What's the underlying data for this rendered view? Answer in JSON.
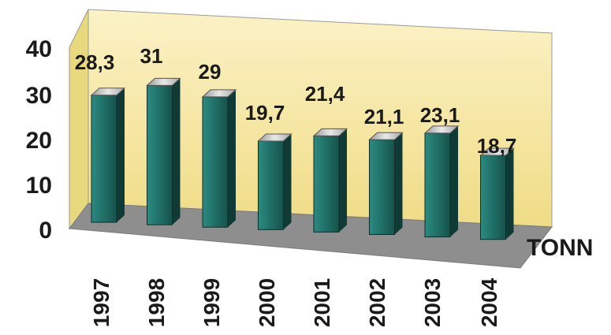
{
  "chart_data": {
    "type": "bar",
    "categories": [
      "1997",
      "1998",
      "1999",
      "2000",
      "2001",
      "2002",
      "2003",
      "2004"
    ],
    "values": [
      28.3,
      31,
      29,
      19.7,
      21.4,
      21.1,
      23.1,
      18.7
    ],
    "data_labels": [
      "28,3",
      "31",
      "29",
      "19,7",
      "21,4",
      "21,1",
      "23,1",
      "18,7"
    ],
    "yticks": [
      "0",
      "10",
      "20",
      "30",
      "40"
    ],
    "ylim": [
      0,
      40
    ],
    "unit_label": "TONN",
    "title": "",
    "xlabel": "",
    "ylabel": "",
    "grid": false,
    "legend": "none",
    "colors": {
      "bar_front": "#1f6f66",
      "bar_side": "#0f3a35",
      "bar_top": "#c9c9c9",
      "back_wall": "#f5e59a",
      "floor": "#8e8e8e",
      "side_wall": "#e9d97e"
    }
  }
}
